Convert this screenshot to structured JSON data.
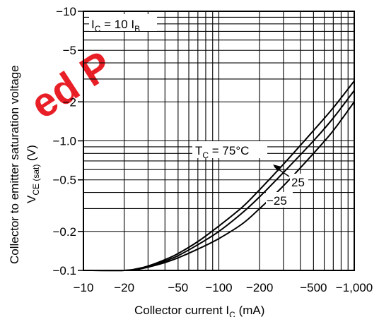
{
  "chart_data": {
    "type": "line",
    "xscale": "log",
    "yscale": "log",
    "xlim": [
      -10,
      -1000
    ],
    "ylim": [
      -0.1,
      -10
    ],
    "grid": true,
    "xlabel": {
      "main": "Collector current  I",
      "sub": "C",
      "unit": "  (mA)"
    },
    "ylabel": {
      "line1": "Collector to emitter saturation voltage",
      "main": "V",
      "sub": "CE (sat)",
      "unit": "  (V)"
    },
    "xticks": [
      {
        "v": 10,
        "label": "−10"
      },
      {
        "v": 20,
        "label": "−20"
      },
      {
        "v": 50,
        "label": "−50"
      },
      {
        "v": 100,
        "label": "−100"
      },
      {
        "v": 200,
        "label": "−200"
      },
      {
        "v": 500,
        "label": "−500"
      },
      {
        "v": 1000,
        "label": "−1,000"
      }
    ],
    "yticks": [
      {
        "v": 10,
        "label": "−10"
      },
      {
        "v": 5,
        "label": "−5"
      },
      {
        "v": 2,
        "label": "−2"
      },
      {
        "v": 1,
        "label": "−1.0"
      },
      {
        "v": 0.5,
        "label": "−0.5"
      },
      {
        "v": 0.2,
        "label": "−0.2"
      },
      {
        "v": 0.1,
        "label": "−0.1"
      }
    ],
    "condition": {
      "main": "I",
      "sub1": "C",
      "mid": " = 10 I",
      "sub2": "B"
    },
    "series": [
      {
        "name_main": "T",
        "name_sub": "C",
        "name_rest": " = 75°C",
        "x": [
          10,
          20,
          25,
          30,
          40,
          50,
          70,
          100,
          150,
          200,
          300,
          500,
          700,
          1000
        ],
        "y": [
          0.1,
          0.1,
          0.103,
          0.108,
          0.121,
          0.135,
          0.167,
          0.22,
          0.31,
          0.42,
          0.66,
          1.2,
          1.8,
          2.9
        ]
      },
      {
        "name": "25",
        "x": [
          10,
          20,
          25,
          30,
          40,
          50,
          70,
          100,
          150,
          200,
          300,
          500,
          700,
          1000
        ],
        "y": [
          0.1,
          0.1,
          0.103,
          0.107,
          0.118,
          0.13,
          0.158,
          0.2,
          0.28,
          0.37,
          0.57,
          1.0,
          1.5,
          2.45
        ]
      },
      {
        "name": "−25",
        "x": [
          10,
          20,
          25,
          30,
          40,
          50,
          70,
          100,
          150,
          200,
          300,
          500,
          700,
          1000
        ],
        "y": [
          0.1,
          0.1,
          0.102,
          0.106,
          0.115,
          0.125,
          0.146,
          0.176,
          0.23,
          0.3,
          0.45,
          0.8,
          1.2,
          2.0
        ]
      }
    ]
  }
}
